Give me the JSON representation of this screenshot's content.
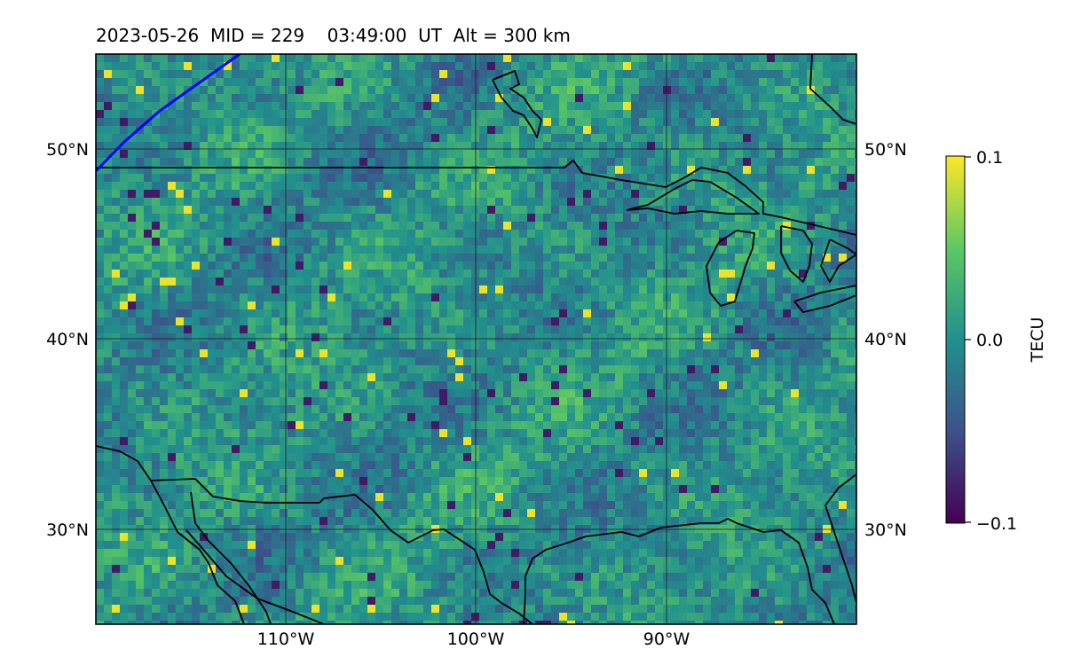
{
  "header": {
    "title": "2023-05-26  MID = 229    03:49:00  UT  Alt = 300 km"
  },
  "map": {
    "extent": {
      "lon": [
        -120,
        -80
      ],
      "lat": [
        25,
        55
      ]
    },
    "lat_labels": [
      "50°N",
      "40°N",
      "30°N"
    ],
    "lon_labels": [
      "110°W",
      "100°W",
      "90°W"
    ],
    "colormap": "viridis",
    "boundary_color": "#000000",
    "terminator_color": "#0000ff"
  },
  "colorbar": {
    "label": "TECU",
    "max_label": "0.1",
    "mid_label": "0.0",
    "min_label": "−0.1",
    "range": [
      -0.1,
      0.1
    ]
  }
}
